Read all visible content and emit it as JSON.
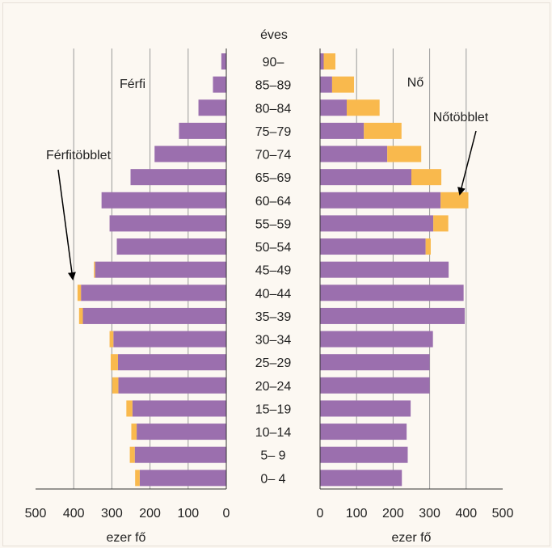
{
  "chart_data": {
    "type": "bar",
    "subtype": "population-pyramid",
    "age_axis_label": "éves",
    "categories": [
      "90–",
      "85–89",
      "80–84",
      "75–79",
      "70–74",
      "65–69",
      "60–64",
      "55–59",
      "50–54",
      "45–49",
      "40–44",
      "35–39",
      "30–34",
      "25–29",
      "20–24",
      "15–19",
      "10–14",
      "5– 9",
      "0– 4"
    ],
    "left_panel": {
      "label": "Férfi",
      "xlabel": "ezer fő",
      "xlim": [
        500,
        0
      ],
      "ticks": [
        500,
        400,
        300,
        200,
        100,
        0
      ],
      "series": [
        {
          "role": "base",
          "values": [
            13,
            35,
            73,
            124,
            188,
            251,
            327,
            306,
            287,
            344,
            381,
            376,
            296,
            284,
            283,
            246,
            235,
            240,
            227
          ]
        },
        {
          "role": "excess",
          "values": [
            0,
            0,
            0,
            0,
            0,
            0,
            0,
            0,
            0,
            3,
            9,
            10,
            10,
            19,
            16,
            16,
            14,
            13,
            12
          ]
        }
      ],
      "annotation": "Férfitöbblet"
    },
    "right_panel": {
      "label": "Nő",
      "xlabel": "ezer fő",
      "xlim": [
        0,
        500
      ],
      "ticks": [
        0,
        100,
        200,
        300,
        400,
        500
      ],
      "series": [
        {
          "role": "base",
          "values": [
            10,
            33,
            73,
            120,
            184,
            250,
            330,
            310,
            289,
            352,
            393,
            396,
            309,
            300,
            300,
            248,
            237,
            240,
            224
          ]
        },
        {
          "role": "excess",
          "values": [
            32,
            60,
            90,
            103,
            93,
            82,
            76,
            41,
            14,
            0,
            0,
            0,
            0,
            0,
            0,
            0,
            0,
            0,
            0
          ]
        }
      ],
      "annotation": "Nőtöbblet"
    },
    "colors": {
      "base": "#9b6fae",
      "excess": "#f9b94d",
      "grid": "#9a9a9a",
      "axis": "#333333"
    },
    "grid": true
  }
}
